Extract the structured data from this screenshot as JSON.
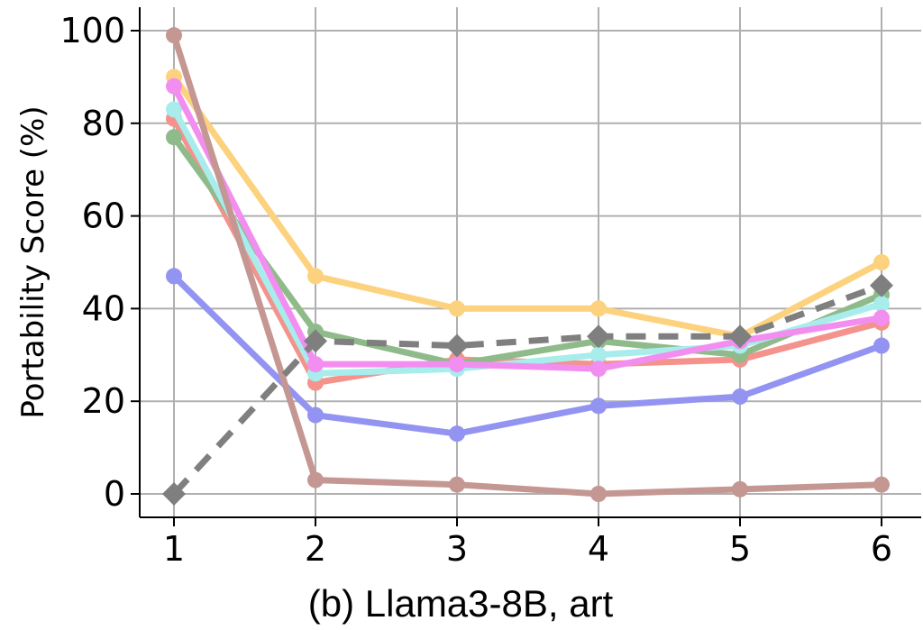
{
  "chart_data": {
    "type": "line",
    "caption": "(b) Llama3-8B, art",
    "xlabel": "",
    "ylabel": "Portability Score (%)",
    "x": [
      1,
      2,
      3,
      4,
      5,
      6
    ],
    "xticks": [
      "1",
      "2",
      "3",
      "4",
      "5",
      "6"
    ],
    "yticks": [
      "0",
      "20",
      "40",
      "60",
      "80",
      "100"
    ],
    "ylim": [
      -5,
      105
    ],
    "xlim": [
      0.75,
      6.25
    ],
    "grid": true,
    "series": [
      {
        "color": "#f4928c",
        "marker": "circle",
        "dashed": false,
        "values": [
          81,
          24,
          29,
          28,
          29,
          37
        ]
      },
      {
        "color": "#8fba8a",
        "marker": "circle",
        "dashed": false,
        "values": [
          77,
          35,
          28,
          33,
          30,
          43
        ]
      },
      {
        "color": "#a8ecec",
        "marker": "circle",
        "dashed": false,
        "values": [
          83,
          26,
          27,
          30,
          32,
          41
        ]
      },
      {
        "color": "#fdd27e",
        "marker": "circle",
        "dashed": false,
        "values": [
          90,
          47,
          40,
          40,
          34,
          50
        ]
      },
      {
        "color": "#f28ef0",
        "marker": "circle",
        "dashed": false,
        "values": [
          88,
          28,
          28,
          27,
          33,
          38
        ]
      },
      {
        "color": "#9393f2",
        "marker": "circle",
        "dashed": false,
        "values": [
          47,
          17,
          13,
          19,
          21,
          32
        ]
      },
      {
        "color": "#c49792",
        "marker": "circle",
        "dashed": false,
        "values": [
          99,
          3,
          2,
          0,
          1,
          2
        ]
      },
      {
        "color": "#7f7f7f",
        "marker": "diamond",
        "dashed": true,
        "values": [
          0,
          33,
          32,
          34,
          34,
          45
        ]
      }
    ]
  }
}
